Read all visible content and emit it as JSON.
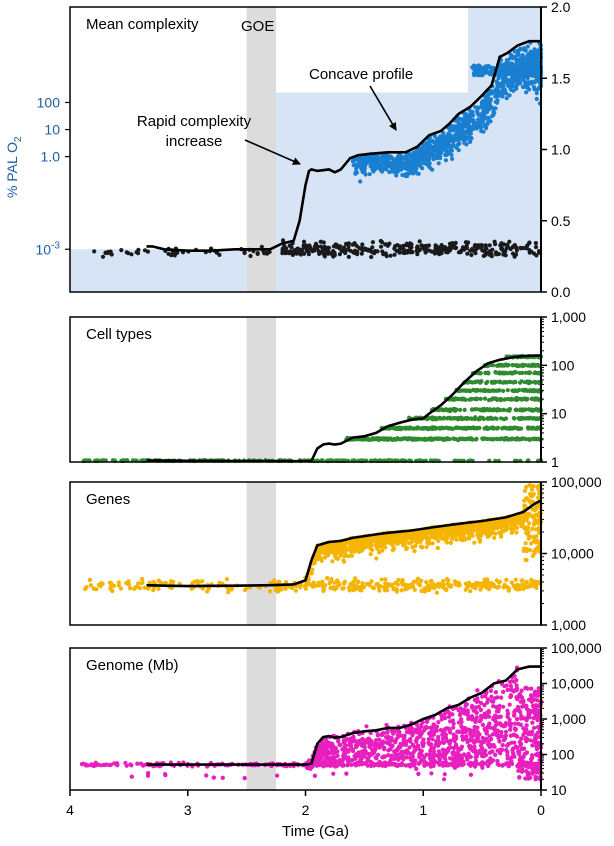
{
  "chart_data": {
    "type": "scatter",
    "x_axis": {
      "label": "Time (Ga)",
      "range": [
        4,
        0
      ],
      "ticks": [
        4,
        3,
        2,
        1,
        0
      ],
      "tick_labels": [
        "4",
        "3",
        "2",
        "1",
        "0"
      ]
    },
    "goe_band": {
      "label": "GOE",
      "x_range": [
        2.5,
        2.25
      ],
      "color": "#dcdcdc"
    },
    "panels": [
      {
        "id": "complexity",
        "title": "Mean complexity",
        "left_axis": {
          "label": "% PAL O",
          "label_subscript": "2",
          "color": "#1f5fa8",
          "ticks": [
            {
              "y": 0.3,
              "label": "10",
              "sup": "-3"
            },
            {
              "y": 0.95,
              "label": "1.0",
              "sup": ""
            },
            {
              "y": 1.14,
              "label": "10",
              "sup": ""
            },
            {
              "y": 1.33,
              "label": "100",
              "sup": ""
            }
          ]
        },
        "right_axis": {
          "range": [
            0,
            2
          ],
          "ticks": [
            0,
            0.5,
            1,
            1.5,
            2
          ],
          "tick_labels": [
            "0.0",
            "0.5",
            "1.0",
            "1.5",
            "2.0"
          ]
        },
        "oxygen_area": {
          "color": "#d6e4f5",
          "steps": [
            [
              4,
              0.3
            ],
            [
              2.25,
              0.3
            ],
            [
              2.25,
              1.4
            ],
            [
              0.62,
              1.4
            ],
            [
              0.62,
              2.0
            ],
            [
              0,
              2.0
            ]
          ]
        },
        "mean_line": [
          [
            3.35,
            0.32
          ],
          [
            3.3,
            0.32
          ],
          [
            3.2,
            0.3
          ],
          [
            3.0,
            0.29
          ],
          [
            2.8,
            0.29
          ],
          [
            2.6,
            0.3
          ],
          [
            2.5,
            0.3
          ],
          [
            2.3,
            0.3
          ],
          [
            2.2,
            0.34
          ],
          [
            2.1,
            0.36
          ],
          [
            2.05,
            0.5
          ],
          [
            2.0,
            0.75
          ],
          [
            1.97,
            0.85
          ],
          [
            1.95,
            0.86
          ],
          [
            1.9,
            0.85
          ],
          [
            1.8,
            0.86
          ],
          [
            1.75,
            0.84
          ],
          [
            1.7,
            0.86
          ],
          [
            1.62,
            0.94
          ],
          [
            1.55,
            0.96
          ],
          [
            1.45,
            0.97
          ],
          [
            1.3,
            0.98
          ],
          [
            1.15,
            0.98
          ],
          [
            1.05,
            1.02
          ],
          [
            0.95,
            1.1
          ],
          [
            0.85,
            1.13
          ],
          [
            0.78,
            1.18
          ],
          [
            0.7,
            1.25
          ],
          [
            0.6,
            1.3
          ],
          [
            0.5,
            1.38
          ],
          [
            0.42,
            1.45
          ],
          [
            0.35,
            1.65
          ],
          [
            0.28,
            1.68
          ],
          [
            0.2,
            1.73
          ],
          [
            0.1,
            1.76
          ],
          [
            0.05,
            1.76
          ],
          [
            0,
            1.76
          ]
        ],
        "series": [
          {
            "name": "",
            "color": "#1a1a1a",
            "generator": "low",
            "count": 380,
            "x_range": [
              3.9,
              0
            ],
            "y_range": [
              0.02,
              0.4
            ]
          },
          {
            "name": "",
            "color": "#1a7fd0",
            "generator": "high",
            "count": 1400,
            "x_range": [
              1.6,
              0
            ],
            "y_range": [
              0.45,
              1.6
            ]
          }
        ],
        "annotations": [
          {
            "lines": [
              "Concave profile"
            ]
          },
          {
            "lines": [
              "Rapid complexity",
              "increase"
            ]
          }
        ]
      },
      {
        "id": "cells",
        "title": "Cell types",
        "right_axis": {
          "scale": "log",
          "range": [
            1,
            1000
          ],
          "ticks": [
            1,
            10,
            100,
            1000
          ],
          "tick_labels": [
            "1",
            "10",
            "100",
            "1,000"
          ]
        },
        "mean_line": [
          [
            3.35,
            1.08
          ],
          [
            3.2,
            1.07
          ],
          [
            3.0,
            1.06
          ],
          [
            2.6,
            1.05
          ],
          [
            2.3,
            1.05
          ],
          [
            2.05,
            1.04
          ],
          [
            1.95,
            1.05
          ],
          [
            1.9,
            1.9
          ],
          [
            1.85,
            2.3
          ],
          [
            1.8,
            2.4
          ],
          [
            1.75,
            2.3
          ],
          [
            1.7,
            2.4
          ],
          [
            1.6,
            3.2
          ],
          [
            1.5,
            3.4
          ],
          [
            1.4,
            4
          ],
          [
            1.3,
            5.5
          ],
          [
            1.2,
            6.5
          ],
          [
            1.1,
            7.5
          ],
          [
            1.0,
            8
          ],
          [
            0.95,
            10
          ],
          [
            0.85,
            15
          ],
          [
            0.75,
            25
          ],
          [
            0.65,
            45
          ],
          [
            0.55,
            75
          ],
          [
            0.45,
            110
          ],
          [
            0.35,
            130
          ],
          [
            0.25,
            145
          ],
          [
            0.15,
            155
          ],
          [
            0.05,
            160
          ],
          [
            0,
            160
          ]
        ],
        "series": [
          {
            "name": "",
            "color": "#2e8b2e",
            "generator": "cells",
            "count": 1600,
            "x_range": [
              3.9,
              0
            ],
            "y_range": [
              1,
              200
            ]
          }
        ]
      },
      {
        "id": "genes",
        "title": "Genes",
        "right_axis": {
          "scale": "log",
          "range": [
            1000,
            100000
          ],
          "ticks": [
            1000,
            10000,
            100000
          ],
          "tick_labels": [
            "1,000",
            "10,000",
            "100,000"
          ]
        },
        "mean_line": [
          [
            3.35,
            3600
          ],
          [
            3.2,
            3550
          ],
          [
            3.0,
            3500
          ],
          [
            2.6,
            3550
          ],
          [
            2.3,
            3600
          ],
          [
            2.1,
            3700
          ],
          [
            2.0,
            4200
          ],
          [
            1.95,
            8000
          ],
          [
            1.9,
            13000
          ],
          [
            1.8,
            14500
          ],
          [
            1.7,
            15000
          ],
          [
            1.6,
            16500
          ],
          [
            1.5,
            17500
          ],
          [
            1.4,
            18500
          ],
          [
            1.3,
            19500
          ],
          [
            1.1,
            21000
          ],
          [
            0.9,
            23500
          ],
          [
            0.7,
            26000
          ],
          [
            0.5,
            28500
          ],
          [
            0.3,
            32000
          ],
          [
            0.15,
            38000
          ],
          [
            0.05,
            50000
          ],
          [
            0,
            55000
          ]
        ],
        "series": [
          {
            "name": "",
            "color": "#f5b400",
            "generator": "genes",
            "count": 2200,
            "x_range": [
              3.9,
              0
            ],
            "y_range": [
              1200,
              80000
            ]
          }
        ]
      },
      {
        "id": "genome",
        "title": "Genome (Mb)",
        "right_axis": {
          "scale": "log",
          "range": [
            10,
            100000
          ],
          "ticks": [
            10,
            100,
            1000,
            10000,
            100000
          ],
          "tick_labels": [
            "10",
            "100",
            "1,000",
            "10,000",
            "100,000"
          ]
        },
        "mean_line": [
          [
            3.35,
            52
          ],
          [
            3.0,
            52
          ],
          [
            2.6,
            52
          ],
          [
            2.3,
            52
          ],
          [
            2.0,
            52
          ],
          [
            1.95,
            55
          ],
          [
            1.9,
            200
          ],
          [
            1.85,
            310
          ],
          [
            1.8,
            330
          ],
          [
            1.75,
            300
          ],
          [
            1.7,
            310
          ],
          [
            1.6,
            400
          ],
          [
            1.5,
            450
          ],
          [
            1.4,
            480
          ],
          [
            1.3,
            560
          ],
          [
            1.2,
            560
          ],
          [
            1.1,
            700
          ],
          [
            1.0,
            1000
          ],
          [
            0.9,
            1300
          ],
          [
            0.8,
            2000
          ],
          [
            0.7,
            2500
          ],
          [
            0.6,
            4000
          ],
          [
            0.5,
            5500
          ],
          [
            0.4,
            10000
          ],
          [
            0.3,
            12000
          ],
          [
            0.2,
            25000
          ],
          [
            0.1,
            30000
          ],
          [
            0,
            30000
          ]
        ],
        "series": [
          {
            "name": "",
            "color": "#e81fbf",
            "generator": "genome",
            "count": 2200,
            "x_range": [
              3.9,
              0
            ],
            "y_range": [
              15,
              40000
            ]
          }
        ]
      }
    ]
  }
}
